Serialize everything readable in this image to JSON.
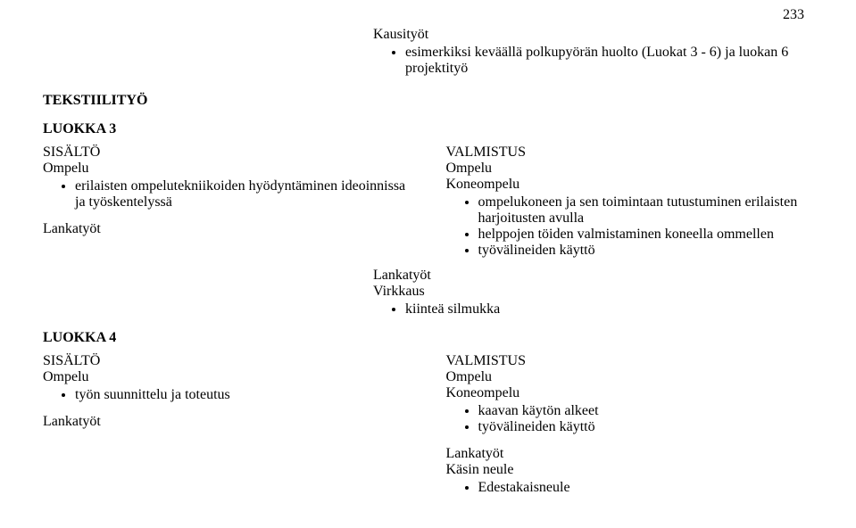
{
  "pageNumber": "233",
  "top": {
    "kausityot": "Kausityöt",
    "bullet": "esimerkiksi keväällä polkupyörän huolto (Luokat  3 - 6) ja luokan 6 projektityö"
  },
  "tekstiilityo": "TEKSTIILITYÖ",
  "luokka3": {
    "heading": "LUOKKA 3",
    "left": {
      "sisalto": "SISÄLTÖ",
      "ompelu": "Ompelu",
      "b1": "erilaisten ompelutekniikoiden hyödyntäminen ideoinnissa ja työskentelyssä",
      "lankatyot": "Lankatyöt"
    },
    "right": {
      "valmistus": "VALMISTUS",
      "ompelu": "Ompelu",
      "koneompelu": "Koneompelu",
      "b1": "ompelukoneen ja sen toimintaan tutustuminen erilaisten harjoitusten avulla",
      "b2": "helppojen töiden valmistaminen koneella ommellen",
      "b3": "työvälineiden käyttö",
      "lankatyot": "Lankatyöt",
      "virkkaus": "Virkkaus",
      "vb1": "kiinteä silmukka"
    }
  },
  "luokka4": {
    "heading": "LUOKKA 4",
    "left": {
      "sisalto": "SISÄLTÖ",
      "ompelu": "Ompelu",
      "b1": "työn suunnittelu ja toteutus",
      "lankatyot": "Lankatyöt"
    },
    "right": {
      "valmistus": "VALMISTUS",
      "ompelu": "Ompelu",
      "koneompelu": "Koneompelu",
      "b1": "kaavan käytön alkeet",
      "b2": "työvälineiden käyttö",
      "lankatyot": "Lankatyöt",
      "kasinneule": "Käsin neule",
      "nb1": "Edestakaisneule"
    }
  }
}
